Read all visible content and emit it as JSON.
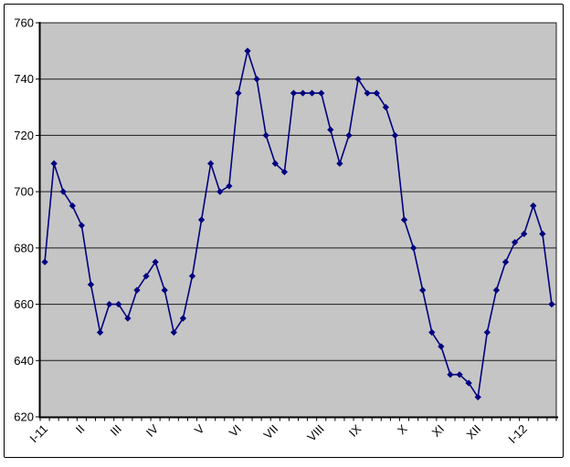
{
  "chart_data": {
    "type": "line",
    "title": "",
    "legend": "none",
    "marker": "diamond",
    "grid": "horizontal",
    "ylim": [
      620,
      760
    ],
    "y_ticks": [
      760,
      740,
      720,
      700,
      680,
      660,
      640,
      620
    ],
    "x_axis": {
      "labels": [
        "I-11",
        "II",
        "III",
        "IV",
        "V",
        "VI",
        "VII",
        "VIII",
        "IX",
        "X",
        "XI",
        "XII",
        "I-12"
      ],
      "label_point_indices": [
        0,
        4,
        8,
        12,
        17,
        21,
        25,
        30,
        34,
        39,
        43,
        47,
        52
      ]
    },
    "values": [
      675,
      710,
      700,
      695,
      688,
      667,
      650,
      660,
      660,
      655,
      665,
      670,
      675,
      665,
      650,
      655,
      670,
      690,
      710,
      700,
      702,
      735,
      750,
      740,
      720,
      710,
      707,
      735,
      735,
      735,
      735,
      722,
      710,
      720,
      740,
      735,
      735,
      730,
      720,
      690,
      680,
      665,
      650,
      645,
      635,
      635,
      632,
      627,
      650,
      665,
      675,
      682,
      685,
      695,
      685,
      660
    ],
    "colors": {
      "series": "#000080",
      "plot_background": "#C5C5C5",
      "gridline": "#1a1a1a",
      "axis": "#000000",
      "chart_background": "#FFFFFF",
      "chart_border": "#000000"
    }
  }
}
